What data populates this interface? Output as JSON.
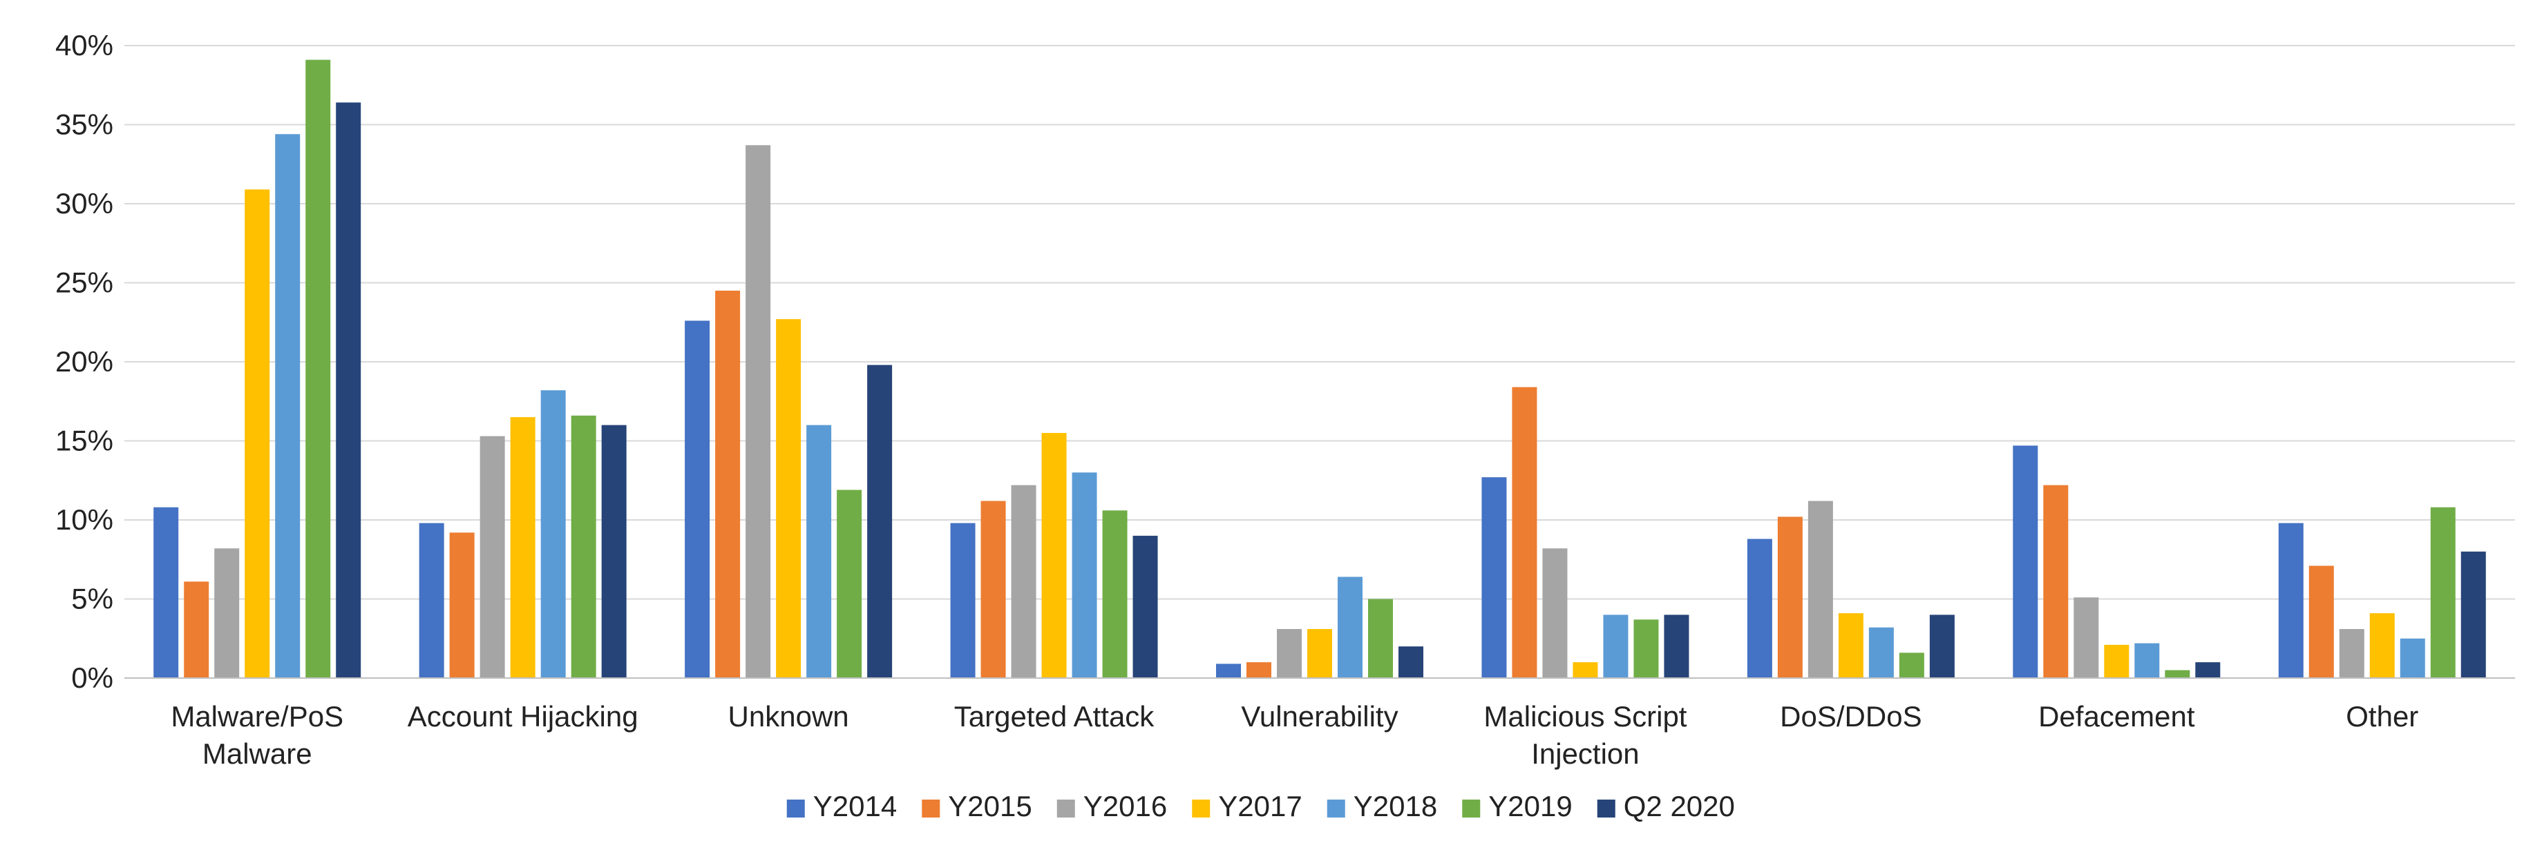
{
  "chart_data": {
    "type": "bar",
    "title": "",
    "xlabel": "",
    "ylabel": "",
    "ylim": [
      0,
      40
    ],
    "yticks": [
      "0%",
      "5%",
      "10%",
      "15%",
      "20%",
      "25%",
      "30%",
      "35%",
      "40%"
    ],
    "grid": true,
    "legend_position": "bottom",
    "categories": [
      [
        "Malware/PoS",
        "Malware"
      ],
      [
        "Account Hijacking"
      ],
      [
        "Unknown"
      ],
      [
        "Targeted Attack"
      ],
      [
        "Vulnerability"
      ],
      [
        "Malicious Script",
        "Injection"
      ],
      [
        "DoS/DDoS"
      ],
      [
        "Defacement"
      ],
      [
        "Other"
      ]
    ],
    "series": [
      {
        "name": "Y2014",
        "color": "#4472c4",
        "values": [
          10.8,
          9.8,
          22.6,
          9.8,
          0.9,
          12.7,
          8.8,
          14.7,
          9.8
        ]
      },
      {
        "name": "Y2015",
        "color": "#ed7d31",
        "values": [
          6.1,
          9.2,
          24.5,
          11.2,
          1.0,
          18.4,
          10.2,
          12.2,
          7.1
        ]
      },
      {
        "name": "Y2016",
        "color": "#a5a5a5",
        "values": [
          8.2,
          15.3,
          33.7,
          12.2,
          3.1,
          8.2,
          11.2,
          5.1,
          3.1
        ]
      },
      {
        "name": "Y2017",
        "color": "#ffc000",
        "values": [
          30.9,
          16.5,
          22.7,
          15.5,
          3.1,
          1.0,
          4.1,
          2.1,
          4.1
        ]
      },
      {
        "name": "Y2018",
        "color": "#5b9bd5",
        "values": [
          34.4,
          18.2,
          16.0,
          13.0,
          6.4,
          4.0,
          3.2,
          2.2,
          2.5
        ]
      },
      {
        "name": "Y2019",
        "color": "#70ad47",
        "values": [
          39.1,
          16.6,
          11.9,
          10.6,
          5.0,
          3.7,
          1.6,
          0.5,
          10.8
        ]
      },
      {
        "name": "Q2 2020",
        "color": "#264478",
        "values": [
          36.4,
          16.0,
          19.8,
          9.0,
          2.0,
          4.0,
          4.0,
          1.0,
          8.0
        ]
      }
    ]
  }
}
